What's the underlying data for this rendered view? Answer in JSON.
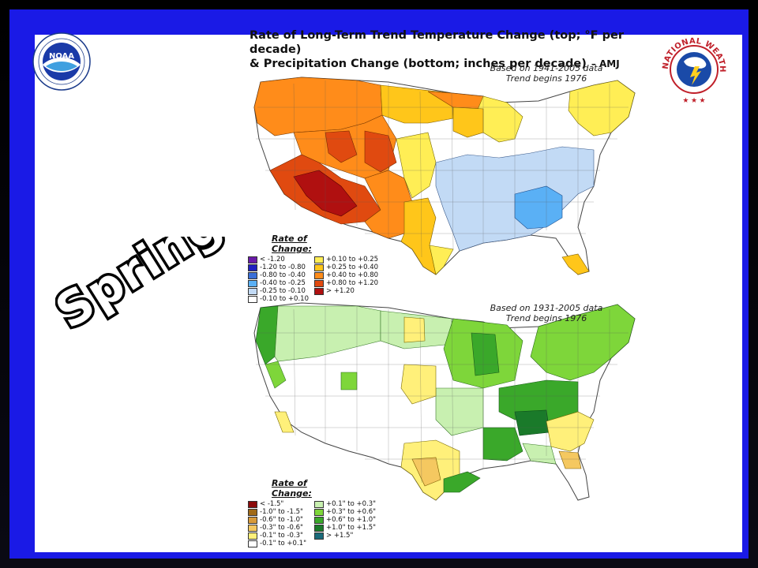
{
  "title": {
    "line1": "Rate of Long-Term Trend Temperature Change (top; °F per decade)",
    "line2": "&  Precipitation Change (bottom; inches per decade)",
    "credit": "– AMJ"
  },
  "season_label": "Spring",
  "top_map": {
    "based_line1": "Based on 1941-2005 data",
    "based_line2": "Trend begins 1976",
    "legend_title": "Rate of Change:",
    "legend": [
      {
        "label": "< -1.20",
        "color": "#6a1aa8"
      },
      {
        "label": "+0.10 to +0.25",
        "color": "#ffee55"
      },
      {
        "label": "-1.20 to -0.80",
        "color": "#2020c0"
      },
      {
        "label": "+0.25 to +0.40",
        "color": "#ffc61a"
      },
      {
        "label": "-0.80 to -0.40",
        "color": "#3a6fd8"
      },
      {
        "label": "+0.40 to +0.80",
        "color": "#ff8c1a"
      },
      {
        "label": "-0.40 to -0.25",
        "color": "#5ab0f5"
      },
      {
        "label": "+0.80 to +1.20",
        "color": "#e04a10"
      },
      {
        "label": "-0.25 to -0.10",
        "color": "#c2daf5"
      },
      {
        "label": "> +1.20",
        "color": "#b01010"
      },
      {
        "label": "-0.10 to +0.10",
        "color": "#ffffff"
      }
    ]
  },
  "bottom_map": {
    "based_line1": "Based on 1931-2005 data",
    "based_line2": "Trend begins 1976",
    "legend_title": "Rate of Change:",
    "legend": [
      {
        "label": "< -1.5\"",
        "color": "#8b0a0a"
      },
      {
        "label": "+0.1\" to +0.3\"",
        "color": "#c8f0b0"
      },
      {
        "label": "-1.0\" to -1.5\"",
        "color": "#a06a18"
      },
      {
        "label": "+0.3\" to +0.6\"",
        "color": "#7ed63a"
      },
      {
        "label": "-0.6\" to -1.0\"",
        "color": "#d89a3a"
      },
      {
        "label": "+0.6\" to +1.0\"",
        "color": "#3aa82a"
      },
      {
        "label": "-0.3\" to -0.6\"",
        "color": "#f5c860"
      },
      {
        "label": "+1.0\" to +1.5\"",
        "color": "#1a7a2a"
      },
      {
        "label": "-0.1\" to -0.3\"",
        "color": "#fff07a"
      },
      {
        "label": "> +1.5\"",
        "color": "#1a6a7a"
      },
      {
        "label": "-0.1\" to +0.1\"",
        "color": "#ffffff"
      }
    ]
  },
  "logos": {
    "noaa_text": "NOAA",
    "nws_text": "NATIONAL WEATHER SERVICE"
  },
  "colors": {
    "frame": "#1a1ae6",
    "season_fill": "#ffffff",
    "season_stroke": "#000000"
  }
}
